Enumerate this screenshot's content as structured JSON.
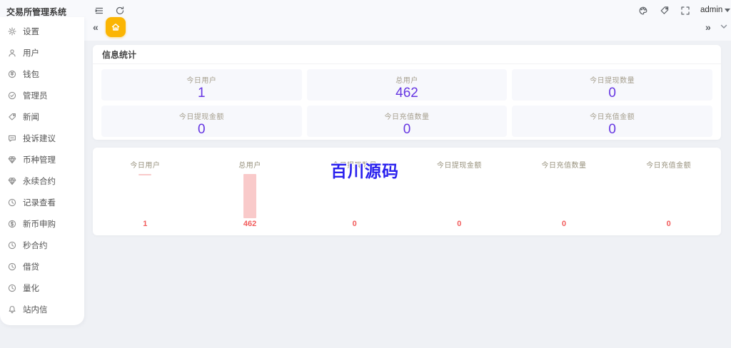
{
  "app": {
    "title": "交易所管理系统"
  },
  "topbar": {
    "icons": [
      "menu-fold-icon",
      "refresh-icon",
      "palette-icon",
      "tag-icon",
      "fullscreen-icon"
    ],
    "user_menu": "admin"
  },
  "tabbar": {
    "collapse_icon": "«",
    "expand_icon": "»",
    "home_tab_icon": "home-icon"
  },
  "sidebar": {
    "items": [
      {
        "label": "设置",
        "icon": "gear-icon"
      },
      {
        "label": "用户",
        "icon": "user-icon"
      },
      {
        "label": "钱包",
        "icon": "coin-icon"
      },
      {
        "label": "管理员",
        "icon": "badge-check-icon"
      },
      {
        "label": "新闻",
        "icon": "tag-icon"
      },
      {
        "label": "投诉建议",
        "icon": "chat-icon"
      },
      {
        "label": "币种管理",
        "icon": "gem-icon"
      },
      {
        "label": "永续合约",
        "icon": "gem-icon"
      },
      {
        "label": "记录查看",
        "icon": "clock-icon"
      },
      {
        "label": "新币申购",
        "icon": "dollar-coin-icon"
      },
      {
        "label": "秒合约",
        "icon": "clock-icon"
      },
      {
        "label": "借贷",
        "icon": "clock-icon"
      },
      {
        "label": "量化",
        "icon": "clock-icon"
      },
      {
        "label": "站内信",
        "icon": "bell-icon"
      }
    ]
  },
  "stats": {
    "title": "信息统计",
    "items": [
      {
        "label": "今日用户",
        "value": "1"
      },
      {
        "label": "总用户",
        "value": "462"
      },
      {
        "label": "今日提现数量",
        "value": "0"
      },
      {
        "label": "今日提现金额",
        "value": "0"
      },
      {
        "label": "今日充值数量",
        "value": "0"
      },
      {
        "label": "今日充值金额",
        "value": "0"
      }
    ]
  },
  "chart_data": {
    "type": "bar",
    "categories": [
      "今日用户",
      "总用户",
      "今日提现数量",
      "今日提现金额",
      "今日充值数量",
      "今日充值金额"
    ],
    "values": [
      1,
      462,
      0,
      0,
      0,
      0
    ],
    "title": "",
    "xlabel": "",
    "ylabel": "",
    "ylim": [
      0,
      462
    ],
    "legend": false,
    "grid": false,
    "bar_color": "#f9caca",
    "value_label_color": "#f25c5c"
  },
  "watermark": {
    "text": "百川源码",
    "color": "#2a21ee"
  },
  "colors": {
    "accent_purple": "#6636e2",
    "accent_yellow": "#fbb503",
    "bar_pink": "#f9caca",
    "value_red": "#f25c5c",
    "watermark_blue": "#2a21ee"
  }
}
